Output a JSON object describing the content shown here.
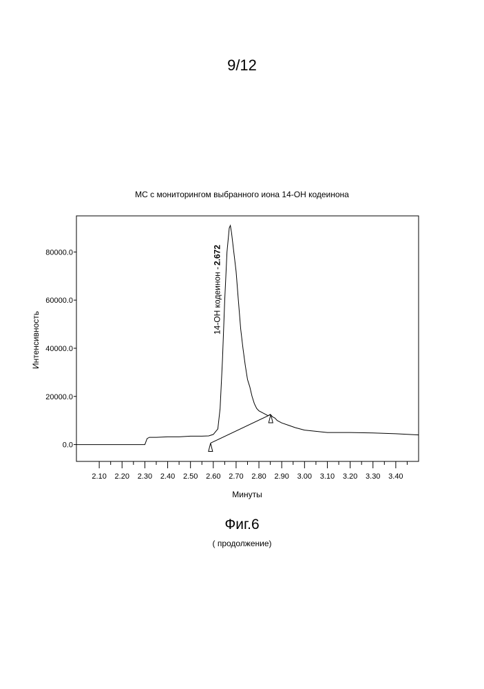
{
  "page": {
    "number": "9/12"
  },
  "figure": {
    "label": "Фиг.6",
    "note": "( продолжение)"
  },
  "chart_data": {
    "type": "line",
    "title": "МС с мониторингом выбранного иона 14-ОН кодеинона",
    "xlabel": "Минуты",
    "ylabel": "Интенсивность",
    "xlim": [
      2.0,
      3.5
    ],
    "ylim": [
      -7000,
      95000
    ],
    "x_ticks": [
      2.1,
      2.2,
      2.3,
      2.4,
      2.5,
      2.6,
      2.7,
      2.8,
      2.9,
      3.0,
      3.1,
      3.2,
      3.3,
      3.4
    ],
    "x_tick_labels": [
      "2.10",
      "2.20",
      "2.30",
      "2.40",
      "2.50",
      "2.60",
      "2.70",
      "2.80",
      "2.90",
      "3.00",
      "3.10",
      "3.20",
      "3.30",
      "3.40"
    ],
    "y_ticks": [
      0,
      20000,
      40000,
      60000,
      80000
    ],
    "y_tick_labels": [
      "0.0",
      "20000.0",
      "40000.0",
      "60000.0",
      "80000.0"
    ],
    "grid": false,
    "series": [
      {
        "x": [
          2.0,
          2.1,
          2.2,
          2.3,
          2.31,
          2.32,
          2.35,
          2.4,
          2.45,
          2.5,
          2.55,
          2.58,
          2.6,
          2.62,
          2.63,
          2.64,
          2.65,
          2.66,
          2.67,
          2.675,
          2.68,
          2.69,
          2.7,
          2.71,
          2.72,
          2.73,
          2.74,
          2.75,
          2.76,
          2.77,
          2.78,
          2.79,
          2.8,
          2.82,
          2.84,
          2.85,
          2.86,
          2.87,
          2.88,
          2.9,
          2.93,
          2.96,
          3.0,
          3.05,
          3.1,
          3.2,
          3.3,
          3.4,
          3.5
        ],
        "y": [
          0,
          0,
          0,
          0,
          2500,
          3000,
          3000,
          3200,
          3200,
          3500,
          3500,
          3600,
          4200,
          6500,
          15000,
          35000,
          60000,
          80000,
          90000,
          91000,
          88000,
          80000,
          72000,
          60000,
          48000,
          40000,
          33000,
          27000,
          24000,
          20000,
          17000,
          15000,
          14000,
          13000,
          12000,
          12500,
          11500,
          11000,
          10000,
          9000,
          8000,
          7000,
          6000,
          5500,
          5000,
          5000,
          4800,
          4500,
          4000
        ]
      }
    ],
    "baseline": {
      "x": [
        2.588,
        2.852
      ],
      "y": [
        600,
        12500
      ]
    },
    "peak_annotation": {
      "label": "14-ОН кодеинон -",
      "retention_time": "2.672",
      "x": 2.672
    },
    "markers": [
      {
        "x": 2.588,
        "y": 600
      },
      {
        "x": 2.852,
        "y": 12500
      }
    ]
  }
}
